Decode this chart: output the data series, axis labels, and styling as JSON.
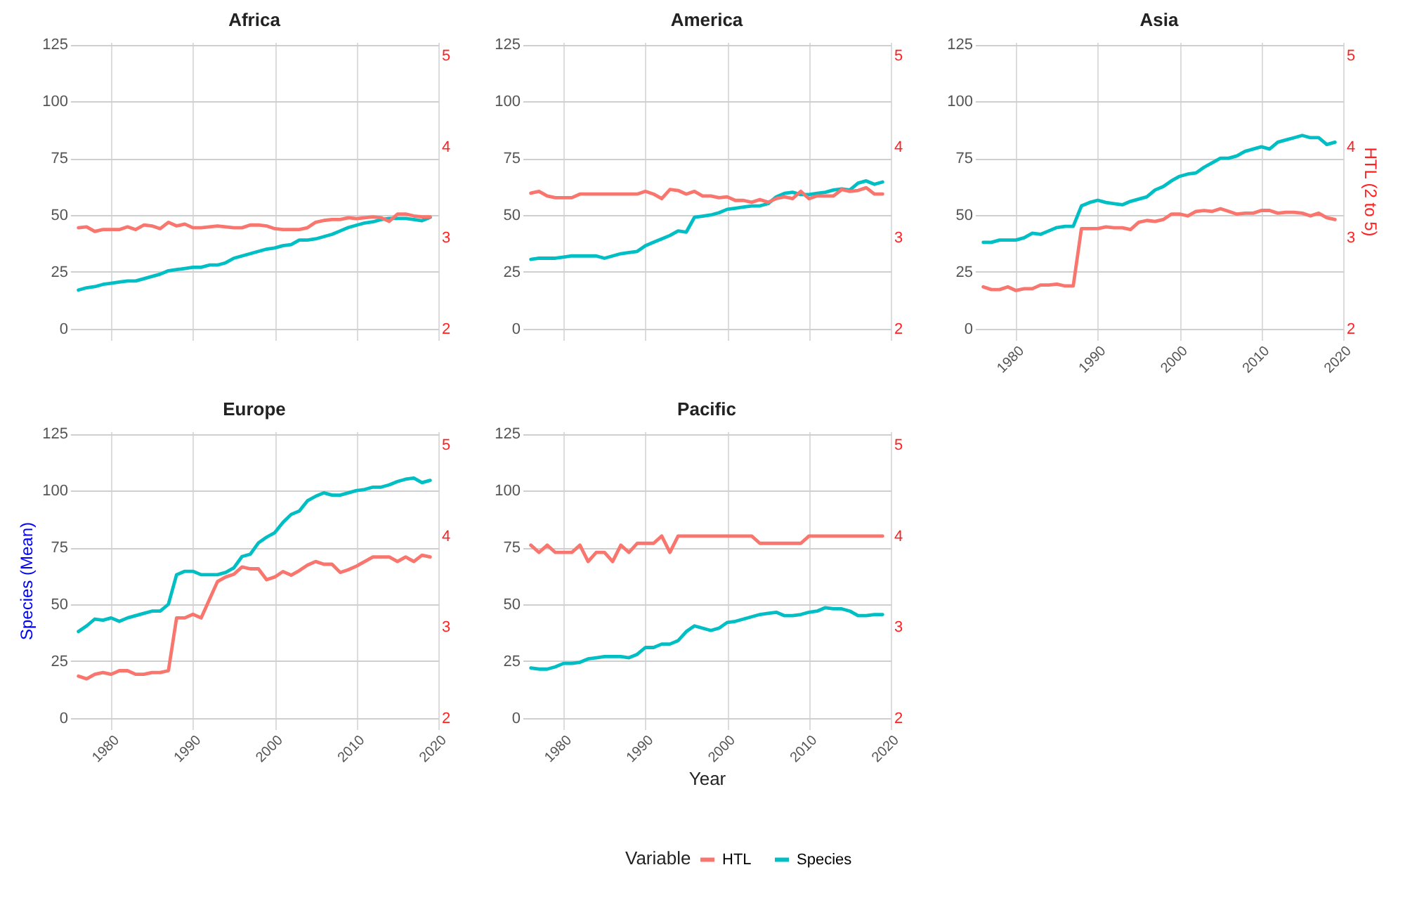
{
  "chart_data": [
    {
      "type": "line",
      "title": "Africa",
      "x": [
        1976,
        1977,
        1978,
        1979,
        1980,
        1981,
        1982,
        1983,
        1984,
        1985,
        1986,
        1987,
        1988,
        1989,
        1990,
        1991,
        1992,
        1993,
        1994,
        1995,
        1996,
        1997,
        1998,
        1999,
        2000,
        2001,
        2002,
        2003,
        2004,
        2005,
        2006,
        2007,
        2008,
        2009,
        2010,
        2011,
        2012,
        2013,
        2014,
        2015,
        2016,
        2017,
        2018,
        2019
      ],
      "xlim": [
        1975,
        2020
      ],
      "xticks": [
        1980,
        1990,
        2000,
        2010,
        2020
      ],
      "ylim": [
        -5,
        126
      ],
      "yticks": [
        0,
        25,
        50,
        75,
        100,
        125
      ],
      "y2lim": [
        1.875,
        5.15
      ],
      "y2ticks": [
        2,
        3,
        4,
        5
      ],
      "grid": true,
      "legend": "bottom",
      "legend_title": "Variable",
      "tick_labels": "y",
      "series": [
        {
          "name": "HTL",
          "color": "#f8766d",
          "axis": "y2",
          "values": [
            3.11,
            3.12,
            3.07,
            3.09,
            3.09,
            3.09,
            3.12,
            3.09,
            3.14,
            3.13,
            3.1,
            3.17,
            3.13,
            3.15,
            3.11,
            3.11,
            3.12,
            3.13,
            3.12,
            3.11,
            3.11,
            3.14,
            3.14,
            3.13,
            3.1,
            3.09,
            3.09,
            3.09,
            3.11,
            3.17,
            3.19,
            3.2,
            3.2,
            3.22,
            3.21,
            3.22,
            3.23,
            3.22,
            3.18,
            3.26,
            3.26,
            3.24,
            3.23,
            3.23
          ]
        },
        {
          "name": "Species",
          "color": "#00bfc4",
          "values": [
            17,
            18,
            18.5,
            19.5,
            20,
            20.5,
            21,
            21,
            22,
            23,
            24,
            25.5,
            26,
            26.5,
            27,
            27,
            28,
            28,
            29,
            31,
            32,
            33,
            34,
            35,
            35.5,
            36.5,
            37,
            39,
            39,
            39.5,
            40.5,
            41.5,
            43,
            44.5,
            45.5,
            46.5,
            47,
            48,
            48.5,
            48.5,
            48.5,
            48,
            47.5,
            49
          ]
        }
      ]
    },
    {
      "type": "line",
      "title": "America",
      "x": [
        1976,
        1977,
        1978,
        1979,
        1980,
        1981,
        1982,
        1983,
        1984,
        1985,
        1986,
        1987,
        1988,
        1989,
        1990,
        1991,
        1992,
        1993,
        1994,
        1995,
        1996,
        1997,
        1998,
        1999,
        2000,
        2001,
        2002,
        2003,
        2004,
        2005,
        2006,
        2007,
        2008,
        2009,
        2010,
        2011,
        2012,
        2013,
        2014,
        2015,
        2016,
        2017,
        2018,
        2019
      ],
      "xlim": [
        1975,
        2020
      ],
      "xticks": [
        1980,
        1990,
        2000,
        2010,
        2020
      ],
      "ylim": [
        -5,
        126
      ],
      "yticks": [
        0,
        25,
        50,
        75,
        100,
        125
      ],
      "y2lim": [
        1.875,
        5.15
      ],
      "y2ticks": [
        2,
        3,
        4,
        5
      ],
      "grid": true,
      "tick_labels": "y",
      "series": [
        {
          "name": "HTL",
          "color": "#f8766d",
          "axis": "y2",
          "values": [
            3.49,
            3.51,
            3.46,
            3.44,
            3.44,
            3.44,
            3.48,
            3.48,
            3.48,
            3.48,
            3.48,
            3.48,
            3.48,
            3.48,
            3.51,
            3.48,
            3.43,
            3.53,
            3.52,
            3.48,
            3.51,
            3.46,
            3.46,
            3.44,
            3.45,
            3.41,
            3.41,
            3.39,
            3.42,
            3.39,
            3.43,
            3.45,
            3.43,
            3.51,
            3.43,
            3.46,
            3.46,
            3.46,
            3.53,
            3.51,
            3.52,
            3.55,
            3.48,
            3.48
          ]
        },
        {
          "name": "Species",
          "color": "#00bfc4",
          "values": [
            30.5,
            31,
            31,
            31,
            31.5,
            32,
            32,
            32,
            32,
            31,
            32,
            33,
            33.5,
            34,
            36.5,
            38,
            39.5,
            41,
            43,
            42.5,
            49,
            49.5,
            50,
            51,
            52.5,
            53,
            53.5,
            54,
            54,
            55,
            58,
            59.5,
            60,
            59,
            59,
            59.5,
            60,
            61,
            61.5,
            61,
            64,
            65,
            63.5,
            64.5
          ]
        }
      ]
    },
    {
      "type": "line",
      "title": "Asia",
      "x": [
        1976,
        1977,
        1978,
        1979,
        1980,
        1981,
        1982,
        1983,
        1984,
        1985,
        1986,
        1987,
        1988,
        1989,
        1990,
        1991,
        1992,
        1993,
        1994,
        1995,
        1996,
        1997,
        1998,
        1999,
        2000,
        2001,
        2002,
        2003,
        2004,
        2005,
        2006,
        2007,
        2008,
        2009,
        2010,
        2011,
        2012,
        2013,
        2014,
        2015,
        2016,
        2017,
        2018,
        2019
      ],
      "xlim": [
        1975,
        2020
      ],
      "xticks": [
        1980,
        1990,
        2000,
        2010,
        2020
      ],
      "ylim": [
        -5,
        126
      ],
      "yticks": [
        0,
        25,
        50,
        75,
        100,
        125
      ],
      "y2lim": [
        1.875,
        5.15
      ],
      "y2ticks": [
        2,
        3,
        4,
        5
      ],
      "y2label": "HTL (2 to 5)",
      "grid": true,
      "series": [
        {
          "name": "HTL",
          "color": "#f8766d",
          "axis": "y2",
          "values": [
            2.46,
            2.43,
            2.43,
            2.46,
            2.42,
            2.44,
            2.44,
            2.48,
            2.48,
            2.49,
            2.47,
            2.47,
            3.1,
            3.1,
            3.1,
            3.12,
            3.11,
            3.11,
            3.09,
            3.17,
            3.19,
            3.18,
            3.2,
            3.26,
            3.26,
            3.24,
            3.29,
            3.3,
            3.29,
            3.32,
            3.29,
            3.26,
            3.27,
            3.27,
            3.3,
            3.3,
            3.27,
            3.28,
            3.28,
            3.27,
            3.24,
            3.27,
            3.22,
            3.2
          ]
        },
        {
          "name": "Species",
          "color": "#00bfc4",
          "values": [
            38,
            38,
            39,
            39,
            39,
            40,
            42,
            41.5,
            43,
            44.5,
            45,
            45,
            54,
            55.5,
            56.5,
            55.5,
            55,
            54.5,
            56,
            57,
            58,
            61,
            62.5,
            65,
            67,
            68,
            68.5,
            71,
            73,
            75,
            75,
            76,
            78,
            79,
            80,
            79,
            82,
            83,
            84,
            85,
            84,
            84,
            81,
            82
          ]
        }
      ]
    },
    {
      "type": "line",
      "title": "Europe",
      "x": [
        1976,
        1977,
        1978,
        1979,
        1980,
        1981,
        1982,
        1983,
        1984,
        1985,
        1986,
        1987,
        1988,
        1989,
        1990,
        1991,
        1992,
        1993,
        1994,
        1995,
        1996,
        1997,
        1998,
        1999,
        2000,
        2001,
        2002,
        2003,
        2004,
        2005,
        2006,
        2007,
        2008,
        2009,
        2010,
        2011,
        2012,
        2013,
        2014,
        2015,
        2016,
        2017,
        2018,
        2019
      ],
      "xlim": [
        1975,
        2020
      ],
      "xticks": [
        1980,
        1990,
        2000,
        2010,
        2020
      ],
      "ylim": [
        -5,
        126
      ],
      "yticks": [
        0,
        25,
        50,
        75,
        100,
        125
      ],
      "y2lim": [
        1.875,
        5.15
      ],
      "y2ticks": [
        2,
        3,
        4,
        5
      ],
      "ylabel": "Species (Mean)",
      "grid": true,
      "series": [
        {
          "name": "HTL",
          "color": "#f8766d",
          "axis": "y2",
          "values": [
            2.46,
            2.43,
            2.48,
            2.5,
            2.48,
            2.52,
            2.52,
            2.48,
            2.48,
            2.5,
            2.5,
            2.52,
            3.1,
            3.1,
            3.14,
            3.1,
            3.3,
            3.5,
            3.55,
            3.58,
            3.66,
            3.64,
            3.64,
            3.52,
            3.55,
            3.61,
            3.57,
            3.62,
            3.68,
            3.72,
            3.69,
            3.69,
            3.6,
            3.63,
            3.67,
            3.72,
            3.77,
            3.77,
            3.77,
            3.72,
            3.77,
            3.72,
            3.79,
            3.77
          ]
        },
        {
          "name": "Species",
          "color": "#00bfc4",
          "values": [
            38,
            40.5,
            43.5,
            43,
            44,
            42.5,
            44,
            45,
            46,
            47,
            47,
            50,
            63,
            64.5,
            64.5,
            63,
            63,
            63,
            64,
            66,
            71,
            72,
            77,
            79.5,
            81.5,
            86,
            89.5,
            91,
            95.5,
            97.5,
            99,
            98,
            98,
            99,
            100,
            100.5,
            101.5,
            101.5,
            102.5,
            104,
            105,
            105.5,
            103.5,
            104.5
          ]
        }
      ]
    },
    {
      "type": "line",
      "title": "Pacific",
      "x": [
        1976,
        1977,
        1978,
        1979,
        1980,
        1981,
        1982,
        1983,
        1984,
        1985,
        1986,
        1987,
        1988,
        1989,
        1990,
        1991,
        1992,
        1993,
        1994,
        1995,
        1996,
        1997,
        1998,
        1999,
        2000,
        2001,
        2002,
        2003,
        2004,
        2005,
        2006,
        2007,
        2008,
        2009,
        2010,
        2011,
        2012,
        2013,
        2014,
        2015,
        2016,
        2017,
        2018,
        2019
      ],
      "xlim": [
        1975,
        2020
      ],
      "xticks": [
        1980,
        1990,
        2000,
        2010,
        2020
      ],
      "ylim": [
        -5,
        126
      ],
      "yticks": [
        0,
        25,
        50,
        75,
        100,
        125
      ],
      "y2lim": [
        1.875,
        5.15
      ],
      "y2ticks": [
        2,
        3,
        4,
        5
      ],
      "xlabel": "Year",
      "grid": true,
      "series": [
        {
          "name": "HTL",
          "color": "#f8766d",
          "axis": "y2",
          "values": [
            3.9,
            3.82,
            3.9,
            3.82,
            3.82,
            3.82,
            3.9,
            3.72,
            3.82,
            3.82,
            3.72,
            3.9,
            3.82,
            3.92,
            3.92,
            3.92,
            4.0,
            3.82,
            4.0,
            4.0,
            4.0,
            4.0,
            4.0,
            4.0,
            4.0,
            4.0,
            4.0,
            4.0,
            3.92,
            3.92,
            3.92,
            3.92,
            3.92,
            3.92,
            4.0,
            4.0,
            4.0,
            4.0,
            4.0,
            4.0,
            4.0,
            4.0,
            4.0,
            4.0
          ]
        },
        {
          "name": "Species",
          "color": "#00bfc4",
          "values": [
            22,
            21.5,
            21.5,
            22.5,
            24,
            24,
            24.5,
            26,
            26.5,
            27,
            27,
            27,
            26.5,
            28,
            31,
            31,
            32.5,
            32.5,
            34,
            38,
            40.5,
            39.5,
            38.5,
            39.5,
            42,
            42.5,
            43.5,
            44.5,
            45.5,
            46,
            46.5,
            45,
            45,
            45.5,
            46.5,
            47,
            48.5,
            48,
            48,
            47,
            45,
            45,
            45.5,
            45.5
          ]
        }
      ]
    }
  ]
}
